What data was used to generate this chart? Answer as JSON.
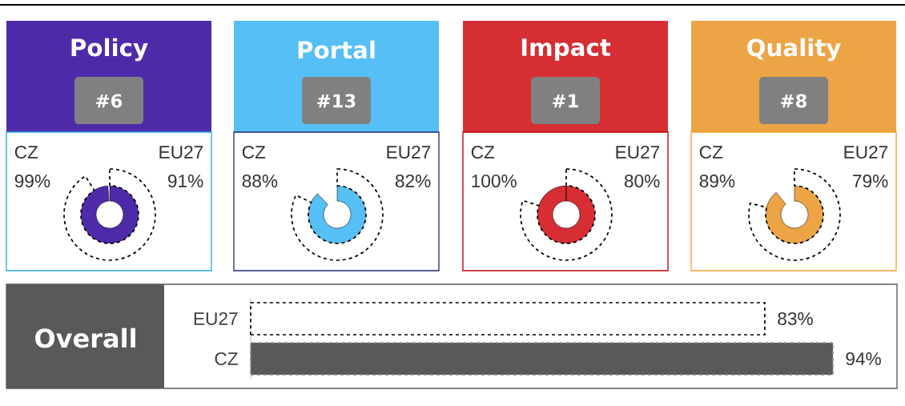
{
  "chart_data": [
    {
      "type": "other",
      "title": "Policy",
      "subtitle": "#6",
      "categories": [
        "CZ",
        "EU27"
      ],
      "values": [
        99,
        91
      ],
      "colors": [
        "#4f2aa8",
        "#ffffff"
      ],
      "value_labels": [
        "99%",
        "91%"
      ]
    },
    {
      "type": "other",
      "title": "Portal",
      "subtitle": "#13",
      "categories": [
        "CZ",
        "EU27"
      ],
      "values": [
        88,
        82
      ],
      "colors": [
        "#56bff5",
        "#ffffff"
      ],
      "value_labels": [
        "88%",
        "82%"
      ]
    },
    {
      "type": "other",
      "title": "Impact",
      "subtitle": "#1",
      "categories": [
        "CZ",
        "EU27"
      ],
      "values": [
        100,
        80
      ],
      "colors": [
        "#d62e33",
        "#ffffff"
      ],
      "value_labels": [
        "100%",
        "80%"
      ]
    },
    {
      "type": "other",
      "title": "Quality",
      "subtitle": "#8",
      "categories": [
        "CZ",
        "EU27"
      ],
      "values": [
        89,
        79
      ],
      "colors": [
        "#eda445",
        "#ffffff"
      ],
      "value_labels": [
        "89%",
        "79%"
      ]
    },
    {
      "type": "bar",
      "orientation": "horizontal",
      "title": "Overall",
      "categories": [
        "EU27",
        "CZ"
      ],
      "values": [
        83,
        94
      ],
      "colors": [
        "#ffffff",
        "#595959"
      ],
      "value_labels": [
        "83%",
        "94%"
      ],
      "line_style": "dashed",
      "tick_labels": "y"
    }
  ]
}
